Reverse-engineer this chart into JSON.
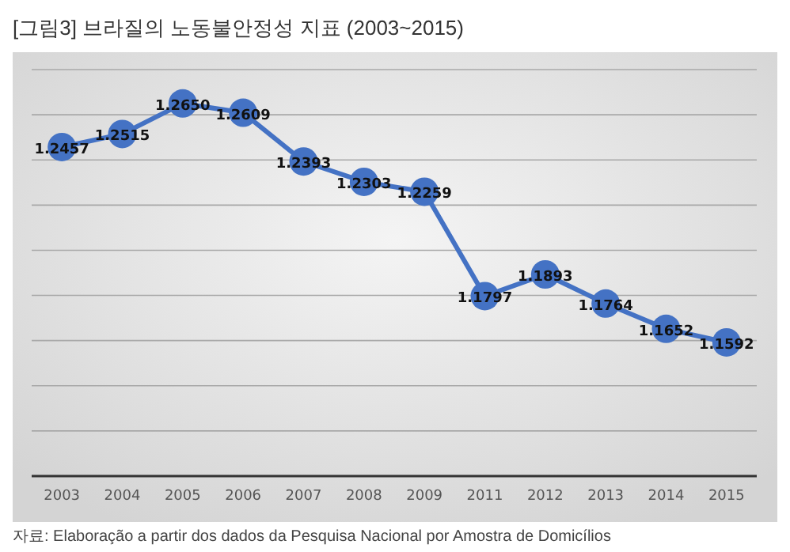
{
  "chart_data": {
    "type": "line",
    "title": "[그림3] 브라질의 노동불안정성 지표 (2003~2015)",
    "categories": [
      "2003",
      "2004",
      "2005",
      "2006",
      "2007",
      "2008",
      "2009",
      "2011",
      "2012",
      "2013",
      "2014",
      "2015"
    ],
    "series": [
      {
        "color": "#4472c4",
        "values": [
          1.2457,
          1.2515,
          1.265,
          1.2609,
          1.2393,
          1.2303,
          1.2259,
          1.1797,
          1.1893,
          1.1764,
          1.1652,
          1.1592
        ],
        "value_labels": [
          "1.2457",
          "1.2515",
          "1.2650",
          "1.2609",
          "1.2393",
          "1.2303",
          "1.2259",
          "1.1797",
          "1.1893",
          "1.1764",
          "1.1652",
          "1.1592"
        ]
      }
    ],
    "ylim": [
      1.1,
      1.28
    ],
    "yticks": [
      {
        "value": 1.1,
        "label": null
      },
      {
        "value": 1.12,
        "label": null
      },
      {
        "value": 1.14,
        "label": null
      },
      {
        "value": 1.16,
        "label": null
      },
      {
        "value": 1.18,
        "label": null
      },
      {
        "value": 1.2,
        "label": null
      },
      {
        "value": 1.22,
        "label": null
      },
      {
        "value": 1.24,
        "label": null
      },
      {
        "value": 1.26,
        "label": null
      },
      {
        "value": 1.28,
        "label": null
      }
    ],
    "tick_labels": "x",
    "grid": "y",
    "marker": "circle",
    "line_style": "solid",
    "annotations": [
      "자료: Elaboração a partir dos dados da Pesquisa Nacional por Amostra de Domicílios"
    ]
  }
}
